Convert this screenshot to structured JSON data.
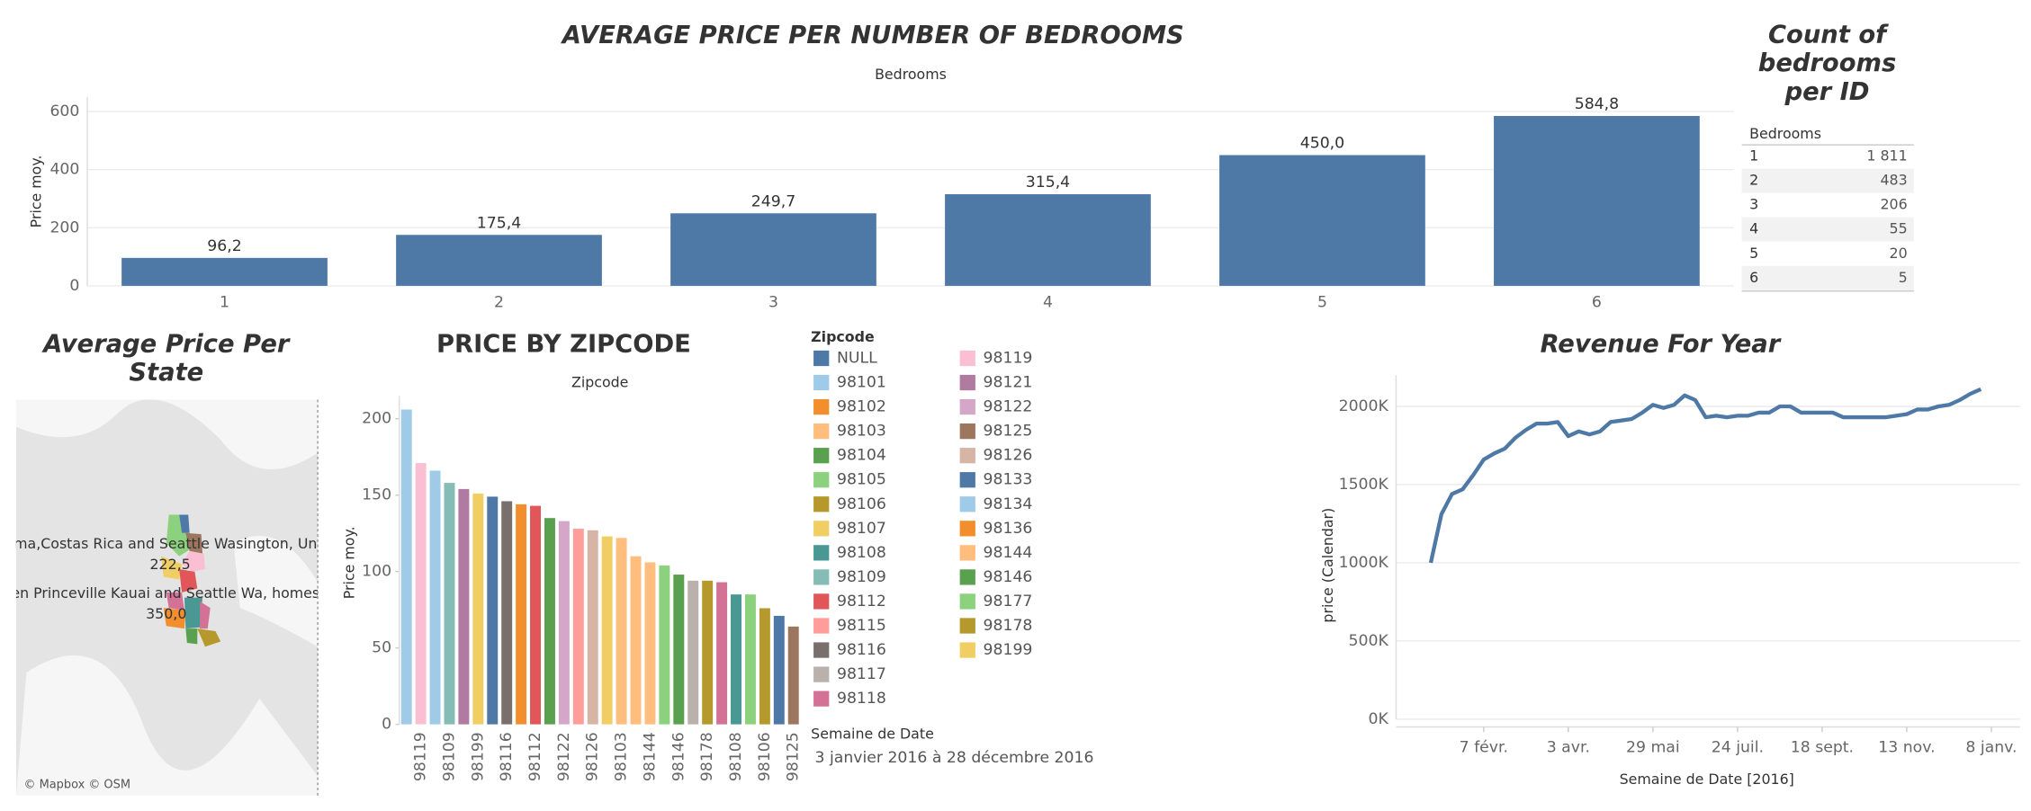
{
  "chart_data": [
    {
      "type": "bar",
      "title": "AVERAGE PRICE PER NUMBER OF BEDROOMS",
      "subtitle": "Bedrooms",
      "y_label": "Price moy.",
      "categories": [
        "1",
        "2",
        "3",
        "4",
        "5",
        "6"
      ],
      "values": [
        96.2,
        175.4,
        249.7,
        315.4,
        450.0,
        584.8
      ],
      "value_labels": [
        "96,2",
        "175,4",
        "249,7",
        "315,4",
        "450,0",
        "584,8"
      ],
      "color": "#4e79a7",
      "ylim": [
        0,
        650
      ],
      "yticks": [
        0,
        200,
        400,
        600
      ],
      "grid": true
    },
    {
      "type": "bar",
      "title": "PRICE BY ZIPCODE",
      "subtitle": "Zipcode",
      "y_label": "Price moy.",
      "categories": [
        null,
        "98119",
        null,
        "98109",
        null,
        "98199",
        null,
        "98116",
        null,
        "98112",
        null,
        "98122",
        null,
        "98126",
        null,
        "98103",
        null,
        "98144",
        null,
        "98146",
        null,
        "98178",
        null,
        "98108",
        null,
        "98106",
        null,
        "98125"
      ],
      "values": [
        206,
        171,
        166,
        158,
        154,
        151,
        149,
        146,
        144,
        143,
        135,
        133,
        128,
        127,
        123,
        122,
        110,
        106,
        104,
        98,
        94,
        94,
        93,
        85,
        85,
        76,
        71,
        64
      ],
      "colors": [
        "#a0cbe8",
        "#fabfd2",
        "#a0cbe8",
        "#86bcb6",
        "#b07aa1",
        "#f1ce63",
        "#4e79a7",
        "#79706e",
        "#f28e2b",
        "#e15759",
        "#59a14f",
        "#d4a6c8",
        "#ff9d9a",
        "#d7b5a6",
        "#f1ce63",
        "#ffbe7d",
        "#ffbe7d",
        "#ffbe7d",
        "#8cd17d",
        "#59a14f",
        "#bab0ac",
        "#b6992d",
        "#d37295",
        "#499894",
        "#8cd17d",
        "#b6992d",
        "#4e79a7",
        "#9d7660"
      ],
      "ylim": [
        0,
        215
      ],
      "yticks": [
        0,
        50,
        100,
        150,
        200
      ],
      "grid": false,
      "legend": {
        "title": "Zipcode",
        "items": [
          {
            "name": "NULL",
            "color": "#4e79a7"
          },
          {
            "name": "98101",
            "color": "#a0cbe8"
          },
          {
            "name": "98102",
            "color": "#f28e2b"
          },
          {
            "name": "98103",
            "color": "#ffbe7d"
          },
          {
            "name": "98104",
            "color": "#59a14f"
          },
          {
            "name": "98105",
            "color": "#8cd17d"
          },
          {
            "name": "98106",
            "color": "#b6992d"
          },
          {
            "name": "98107",
            "color": "#f1ce63"
          },
          {
            "name": "98108",
            "color": "#499894"
          },
          {
            "name": "98109",
            "color": "#86bcb6"
          },
          {
            "name": "98112",
            "color": "#e15759"
          },
          {
            "name": "98115",
            "color": "#ff9d9a"
          },
          {
            "name": "98116",
            "color": "#79706e"
          },
          {
            "name": "98117",
            "color": "#bab0ac"
          },
          {
            "name": "98118",
            "color": "#d37295"
          },
          {
            "name": "98119",
            "color": "#fabfd2"
          },
          {
            "name": "98121",
            "color": "#b07aa1"
          },
          {
            "name": "98122",
            "color": "#d4a6c8"
          },
          {
            "name": "98125",
            "color": "#9d7660"
          },
          {
            "name": "98126",
            "color": "#d7b5a6"
          },
          {
            "name": "98133",
            "color": "#4e79a7"
          },
          {
            "name": "98134",
            "color": "#a0cbe8"
          },
          {
            "name": "98136",
            "color": "#f28e2b"
          },
          {
            "name": "98144",
            "color": "#ffbe7d"
          },
          {
            "name": "98146",
            "color": "#59a14f"
          },
          {
            "name": "98177",
            "color": "#8cd17d"
          },
          {
            "name": "98178",
            "color": "#b6992d"
          },
          {
            "name": "98199",
            "color": "#f1ce63"
          }
        ]
      },
      "filter": {
        "title": "Semaine de Date",
        "value": "3 janvier 2016 à 28 décembre 2016"
      }
    },
    {
      "type": "line",
      "title": "Revenue For Year",
      "y_label": "price (Calendar)",
      "x_label": "Semaine de Date [2016]",
      "color": "#4e79a7",
      "x": [
        "2016-01-03",
        "2016-01-10",
        "2016-01-17",
        "2016-01-24",
        "2016-01-31",
        "2016-02-07",
        "2016-02-14",
        "2016-02-21",
        "2016-02-28",
        "2016-03-06",
        "2016-03-13",
        "2016-03-20",
        "2016-03-27",
        "2016-04-03",
        "2016-04-10",
        "2016-04-17",
        "2016-04-24",
        "2016-05-01",
        "2016-05-08",
        "2016-05-15",
        "2016-05-22",
        "2016-05-29",
        "2016-06-05",
        "2016-06-12",
        "2016-06-19",
        "2016-06-26",
        "2016-07-03",
        "2016-07-10",
        "2016-07-17",
        "2016-07-24",
        "2016-07-31",
        "2016-08-07",
        "2016-08-14",
        "2016-08-21",
        "2016-08-28",
        "2016-09-04",
        "2016-09-11",
        "2016-09-18",
        "2016-09-25",
        "2016-10-02",
        "2016-10-09",
        "2016-10-16",
        "2016-10-23",
        "2016-10-30",
        "2016-11-06",
        "2016-11-13",
        "2016-11-20",
        "2016-11-27",
        "2016-12-04",
        "2016-12-11",
        "2016-12-18",
        "2016-12-25",
        "2017-01-01"
      ],
      "values": [
        1000000,
        1310000,
        1440000,
        1470000,
        1560000,
        1660000,
        1700000,
        1730000,
        1800000,
        1850000,
        1890000,
        1890000,
        1900000,
        1810000,
        1840000,
        1820000,
        1840000,
        1900000,
        1910000,
        1920000,
        1960000,
        2010000,
        1990000,
        2010000,
        2070000,
        2040000,
        1930000,
        1940000,
        1930000,
        1940000,
        1940000,
        1960000,
        1960000,
        2000000,
        2000000,
        1960000,
        1960000,
        1960000,
        1960000,
        1930000,
        1930000,
        1930000,
        1930000,
        1930000,
        1940000,
        1950000,
        1980000,
        1980000,
        2000000,
        2010000,
        2040000,
        2080000,
        2110000
      ],
      "xlim": [
        "2015-12-11",
        "2017-01-27"
      ],
      "xticks": [
        {
          "value": "2016-02-07",
          "label": "7 févr."
        },
        {
          "value": "2016-04-03",
          "label": "3 avr."
        },
        {
          "value": "2016-05-29",
          "label": "29 mai"
        },
        {
          "value": "2016-07-24",
          "label": "24 juil."
        },
        {
          "value": "2016-09-18",
          "label": "18 sept."
        },
        {
          "value": "2016-11-13",
          "label": "13 nov."
        },
        {
          "value": "2017-01-08",
          "label": "8 janv."
        }
      ],
      "ylim": [
        0,
        2200000
      ],
      "yticks": [
        {
          "value": 0,
          "label": "0K"
        },
        {
          "value": 500000,
          "label": "500K"
        },
        {
          "value": 1000000,
          "label": "1000K"
        },
        {
          "value": 1500000,
          "label": "1500K"
        },
        {
          "value": 2000000,
          "label": "2000K"
        }
      ],
      "grid": true
    }
  ],
  "table": {
    "title": "Count of bedrooms per ID",
    "header": "Bedrooms",
    "rows": [
      [
        "1",
        "1 811"
      ],
      [
        "2",
        "483"
      ],
      [
        "3",
        "206"
      ],
      [
        "4",
        "55"
      ],
      [
        "5",
        "20"
      ],
      [
        "6",
        "5"
      ]
    ]
  },
  "map": {
    "title": "Average Price Per State",
    "labels": [
      "zuma,Costas Rica  and Seattle Wasington, Unite",
      "222,5",
      "ween Princeville Kauai and Seattle Wa, homes bo",
      "350,0"
    ],
    "attribution": "© Mapbox © OSM"
  }
}
